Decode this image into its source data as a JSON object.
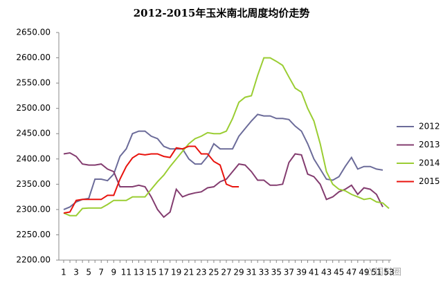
{
  "chart_data": {
    "type": "line",
    "title": "2012-2015年玉米南北周度均价走势",
    "watermark": "LY饲料圈",
    "categories": [
      "1",
      null,
      "3",
      null,
      "5",
      null,
      "7",
      null,
      "9",
      null,
      "11",
      null,
      "13",
      null,
      "15",
      null,
      "17",
      null,
      "19",
      null,
      "21",
      null,
      "23",
      null,
      "25",
      null,
      "27",
      null,
      "29",
      null,
      "31",
      null,
      "33",
      null,
      "35",
      null,
      "37",
      null,
      "39",
      null,
      "41",
      null,
      "43",
      null,
      "45",
      null,
      "47",
      null,
      "49",
      null,
      "51",
      null,
      "53"
    ],
    "ylim": [
      2200,
      2650
    ],
    "yticks": [
      {
        "value": 2200,
        "label": "2200.00"
      },
      {
        "value": 2250,
        "label": "2250.00"
      },
      {
        "value": 2300,
        "label": "2300.00"
      },
      {
        "value": 2350,
        "label": "2350.00"
      },
      {
        "value": 2400,
        "label": "2400.00"
      },
      {
        "value": 2450,
        "label": "2450.00"
      },
      {
        "value": 2500,
        "label": "2500.00"
      },
      {
        "value": 2550,
        "label": "2550.00"
      },
      {
        "value": 2600,
        "label": "2600.00"
      },
      {
        "value": 2650,
        "label": "2650.00"
      }
    ],
    "grid": false,
    "legend": "right",
    "series": [
      {
        "name": "2012",
        "color": "#6b6b99",
        "values": [
          2300,
          2305,
          2315,
          2320,
          2322,
          2360,
          2360,
          2357,
          2370,
          2405,
          2420,
          2450,
          2455,
          2455,
          2445,
          2440,
          2425,
          2420,
          2420,
          2420,
          2400,
          2390,
          2390,
          2405,
          2430,
          2420,
          2420,
          2420,
          2445,
          2460,
          2475,
          2488,
          2485,
          2485,
          2480,
          2480,
          2478,
          2465,
          2455,
          2430,
          2400,
          2380,
          2360,
          2358,
          2365,
          2385,
          2403,
          2380,
          2385,
          2385,
          2380,
          2378,
          null
        ]
      },
      {
        "name": "2013",
        "color": "#833c6f",
        "values": [
          2410,
          2412,
          2405,
          2390,
          2388,
          2388,
          2390,
          2380,
          2375,
          2345,
          2345,
          2345,
          2348,
          2345,
          2325,
          2300,
          2285,
          2295,
          2340,
          2325,
          2330,
          2333,
          2335,
          2343,
          2345,
          2355,
          2360,
          2375,
          2390,
          2388,
          2375,
          2358,
          2358,
          2348,
          2348,
          2350,
          2393,
          2410,
          2408,
          2370,
          2365,
          2350,
          2320,
          2325,
          2335,
          2340,
          2348,
          2330,
          2343,
          2340,
          2330,
          2305,
          null
        ]
      },
      {
        "name": "2014",
        "color": "#9acd32",
        "values": [
          2293,
          2288,
          2288,
          2302,
          2303,
          2303,
          2303,
          2310,
          2318,
          2318,
          2318,
          2325,
          2325,
          2325,
          2340,
          2355,
          2368,
          2385,
          2400,
          2415,
          2430,
          2440,
          2445,
          2452,
          2450,
          2450,
          2455,
          2480,
          2512,
          2522,
          2525,
          2565,
          2600,
          2600,
          2593,
          2585,
          2562,
          2540,
          2532,
          2500,
          2475,
          2430,
          2375,
          2350,
          2340,
          2337,
          2330,
          2325,
          2320,
          2322,
          2315,
          2313,
          2302
        ]
      },
      {
        "name": "2015",
        "color": "#e8120c",
        "values": [
          2293,
          2295,
          2318,
          2320,
          2320,
          2320,
          2320,
          2328,
          2328,
          2360,
          2385,
          2402,
          2410,
          2408,
          2410,
          2410,
          2405,
          2403,
          2422,
          2420,
          2425,
          2425,
          2410,
          2410,
          2395,
          2388,
          2350,
          2345,
          2345,
          null,
          null,
          null,
          null,
          null,
          null,
          null,
          null,
          null,
          null,
          null,
          null,
          null,
          null,
          null,
          null,
          null,
          null,
          null,
          null,
          null,
          null,
          null,
          null
        ]
      }
    ]
  }
}
